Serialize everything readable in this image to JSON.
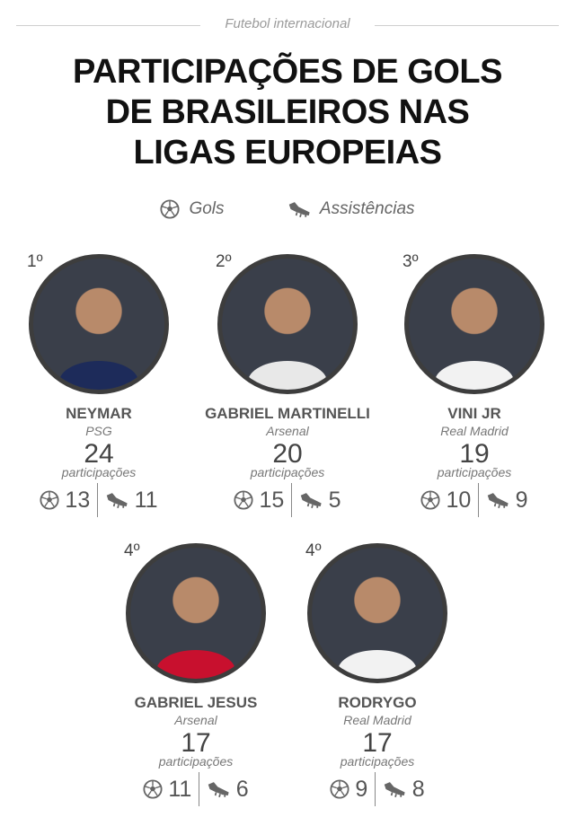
{
  "kicker": "Futebol internacional",
  "title": [
    "PARTICIPAÇÕES DE GOLS",
    "DE BRASILEIROS NAS",
    "LIGAS EUROPEIAS"
  ],
  "legend": {
    "goals": "Gols",
    "goals_icon": "soccer-ball-icon",
    "assists": "Assistências",
    "assists_icon": "football-boot-icon"
  },
  "participations_label": "participações",
  "colors": {
    "title": "#111111",
    "text": "#444444",
    "photo_border": "#3d3d3d"
  },
  "players": [
    {
      "rank": "1º",
      "name": "NEYMAR",
      "club": "PSG",
      "total": "24",
      "goals": "13",
      "assists": "11",
      "shirt": "#1d2b5a"
    },
    {
      "rank": "2º",
      "name": "GABRIEL MARTINELLI",
      "club": "Arsenal",
      "total": "20",
      "goals": "15",
      "assists": "5",
      "shirt": "#e8e8e8"
    },
    {
      "rank": "3º",
      "name": "VINI JR",
      "club": "Real Madrid",
      "total": "19",
      "goals": "10",
      "assists": "9",
      "shirt": "#f2f2f2"
    },
    {
      "rank": "4º",
      "name": "GABRIEL JESUS",
      "club": "Arsenal",
      "total": "17",
      "goals": "11",
      "assists": "6",
      "shirt": "#c8102e"
    },
    {
      "rank": "4º",
      "name": "RODRYGO",
      "club": "Real Madrid",
      "total": "17",
      "goals": "9",
      "assists": "8",
      "shirt": "#f2f2f2"
    }
  ]
}
